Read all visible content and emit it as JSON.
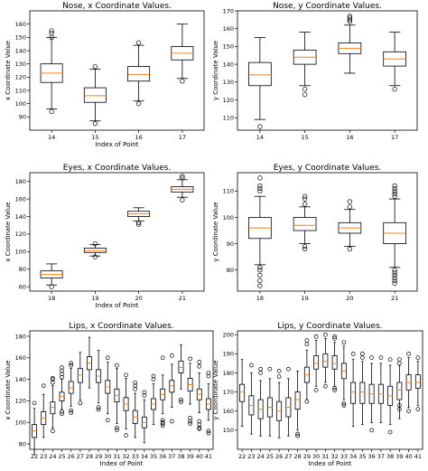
{
  "chart_data": [
    {
      "type": "box",
      "title": "Nose, x Coordinate Values.",
      "xlabel": "Index of Point",
      "ylabel": "x Coordinate Value",
      "ylim": [
        80,
        170
      ],
      "yticks": [
        90,
        100,
        110,
        120,
        130,
        140,
        150,
        160
      ],
      "categories": [
        "14",
        "15",
        "16",
        "17"
      ],
      "boxes": [
        {
          "whislo": 96,
          "q1": 116,
          "med": 123,
          "q3": 130,
          "whishi": 150,
          "fliers": [
            94,
            150,
            153,
            155
          ]
        },
        {
          "whislo": 87,
          "q1": 101,
          "med": 106,
          "q3": 112,
          "whishi": 126,
          "fliers": [
            85,
            128
          ]
        },
        {
          "whislo": 102,
          "q1": 117,
          "med": 122,
          "q3": 128,
          "whishi": 144,
          "fliers": [
            100,
            146
          ]
        },
        {
          "whislo": 119,
          "q1": 133,
          "med": 138,
          "q3": 143,
          "whishi": 160,
          "fliers": [
            117
          ]
        }
      ]
    },
    {
      "type": "box",
      "title": "Nose, y Coordinate Values.",
      "xlabel": "",
      "ylabel": "y Coordinate Value",
      "ylim": [
        103,
        170
      ],
      "yticks": [
        110,
        120,
        130,
        140,
        150,
        160,
        170
      ],
      "categories": [
        "14",
        "15",
        "16",
        "17"
      ],
      "boxes": [
        {
          "whislo": 109,
          "q1": 128,
          "med": 134,
          "q3": 141,
          "whishi": 155,
          "fliers": [
            105
          ]
        },
        {
          "whislo": 128,
          "q1": 140,
          "med": 144,
          "q3": 148,
          "whishi": 158,
          "fliers": [
            126,
            123
          ]
        },
        {
          "whislo": 135,
          "q1": 146,
          "med": 149,
          "q3": 152,
          "whishi": 162,
          "fliers": [
            164,
            165,
            166,
            167
          ]
        },
        {
          "whislo": 128,
          "q1": 139,
          "med": 143,
          "q3": 147,
          "whishi": 158,
          "fliers": [
            126
          ]
        }
      ]
    },
    {
      "type": "box",
      "title": "Eyes, x Coordinate Values.",
      "xlabel": "Index of Point",
      "ylabel": "x Coordinate Value",
      "ylim": [
        55,
        190
      ],
      "yticks": [
        60,
        80,
        100,
        120,
        140,
        160,
        180
      ],
      "categories": [
        "18",
        "19",
        "20",
        "21"
      ],
      "boxes": [
        {
          "whislo": 62,
          "q1": 70,
          "med": 74,
          "q3": 78,
          "whishi": 86,
          "fliers": [
            60
          ]
        },
        {
          "whislo": 95,
          "q1": 99,
          "med": 101,
          "q3": 104,
          "whishi": 108,
          "fliers": [
            94,
            109
          ]
        },
        {
          "whislo": 135,
          "q1": 140,
          "med": 143,
          "q3": 146,
          "whishi": 150,
          "fliers": [
            131,
            133
          ]
        },
        {
          "whislo": 162,
          "q1": 168,
          "med": 171,
          "q3": 174,
          "whishi": 182,
          "fliers": [
            159,
            184,
            186
          ]
        }
      ]
    },
    {
      "type": "box",
      "title": "Eyes, y Coordinate Values.",
      "xlabel": "",
      "ylabel": "y Coordinate Value",
      "ylim": [
        72,
        117
      ],
      "yticks": [
        80,
        90,
        100,
        110
      ],
      "categories": [
        "18",
        "19",
        "20",
        "21"
      ],
      "boxes": [
        {
          "whislo": 82,
          "q1": 92,
          "med": 96,
          "q3": 100,
          "whishi": 108,
          "fliers": [
            74,
            76,
            78,
            80,
            81,
            110,
            111,
            112,
            115
          ]
        },
        {
          "whislo": 90,
          "q1": 95,
          "med": 97,
          "q3": 100,
          "whishi": 104,
          "fliers": [
            88,
            89,
            105,
            107,
            108
          ]
        },
        {
          "whislo": 89,
          "q1": 94,
          "med": 96,
          "q3": 98,
          "whishi": 103,
          "fliers": [
            88,
            104,
            106
          ]
        },
        {
          "whislo": 81,
          "q1": 90,
          "med": 94,
          "q3": 98,
          "whishi": 107,
          "fliers": [
            75,
            76,
            77,
            78,
            79,
            80,
            108,
            109,
            110,
            111,
            112
          ]
        }
      ]
    },
    {
      "type": "box",
      "title": "Lips, x Coordinate Values.",
      "xlabel": "Index of Point",
      "ylabel": "x Coordinate Value",
      "ylim": [
        75,
        185
      ],
      "yticks": [
        80,
        100,
        120,
        140,
        160,
        180
      ],
      "categories": [
        "22",
        "23",
        "24",
        "25",
        "26",
        "27",
        "28",
        "29",
        "30",
        "31",
        "32",
        "33",
        "34",
        "35",
        "36",
        "37",
        "38",
        "39",
        "40",
        "41"
      ],
      "boxes": [
        {
          "whislo": 70,
          "q1": 86,
          "med": 92,
          "q3": 98,
          "whishi": 113,
          "fliers": [
            118
          ]
        },
        {
          "whislo": 86,
          "q1": 98,
          "med": 104,
          "q3": 110,
          "whishi": 126,
          "fliers": [
            134
          ]
        },
        {
          "whislo": 95,
          "q1": 108,
          "med": 114,
          "q3": 119,
          "whishi": 134,
          "fliers": [
            92,
            137,
            140,
            141
          ]
        },
        {
          "whislo": 112,
          "q1": 120,
          "med": 124,
          "q3": 128,
          "whishi": 140,
          "fliers": [
            108,
            110,
            142,
            145,
            148,
            151
          ]
        },
        {
          "whislo": 115,
          "q1": 127,
          "med": 132,
          "q3": 138,
          "whishi": 150,
          "fliers": [
            109,
            111,
            153,
            155
          ]
        },
        {
          "whislo": 121,
          "q1": 137,
          "med": 144,
          "q3": 150,
          "whishi": 165,
          "fliers": [
            118
          ]
        },
        {
          "whislo": 132,
          "q1": 149,
          "med": 155,
          "q3": 161,
          "whishi": 179,
          "fliers": []
        },
        {
          "whislo": 118,
          "q1": 137,
          "med": 143,
          "q3": 149,
          "whishi": 167,
          "fliers": [
            112,
            114
          ]
        },
        {
          "whislo": 108,
          "q1": 127,
          "med": 133,
          "q3": 139,
          "whishi": 156,
          "fliers": [
            102,
            160
          ]
        },
        {
          "whislo": 99,
          "q1": 119,
          "med": 125,
          "q3": 131,
          "whishi": 150,
          "fliers": [
            93,
            95,
            153
          ]
        },
        {
          "whislo": 94,
          "q1": 111,
          "med": 117,
          "q3": 123,
          "whishi": 141,
          "fliers": [
            88,
            144
          ]
        },
        {
          "whislo": 86,
          "q1": 99,
          "med": 105,
          "q3": 111,
          "whishi": 127,
          "fliers": [
            131,
            134,
            137
          ]
        },
        {
          "whislo": 81,
          "q1": 95,
          "med": 100,
          "q3": 105,
          "whishi": 121,
          "fliers": [
            125,
            128
          ]
        },
        {
          "whislo": 98,
          "q1": 112,
          "med": 117,
          "q3": 122,
          "whishi": 136,
          "fliers": [
            140,
            143
          ]
        },
        {
          "whislo": 108,
          "q1": 121,
          "med": 126,
          "q3": 131,
          "whishi": 144,
          "fliers": [
            97,
            99,
            100,
            102,
            160
          ]
        },
        {
          "whislo": 114,
          "q1": 128,
          "med": 134,
          "q3": 139,
          "whishi": 154,
          "fliers": [
            101,
            162
          ]
        },
        {
          "whislo": 131,
          "q1": 146,
          "med": 151,
          "q3": 157,
          "whishi": 172,
          "fliers": [
            119,
            121
          ]
        },
        {
          "whislo": 117,
          "q1": 129,
          "med": 135,
          "q3": 141,
          "whishi": 155,
          "fliers": [
            99,
            101,
            104,
            159
          ]
        },
        {
          "whislo": 109,
          "q1": 121,
          "med": 126,
          "q3": 131,
          "whishi": 146,
          "fliers": [
            94,
            95,
            98,
            101,
            152,
            156
          ]
        },
        {
          "whislo": 102,
          "q1": 112,
          "med": 117,
          "q3": 122,
          "whishi": 136,
          "fliers": [
            90,
            92,
            143,
            146
          ]
        }
      ]
    },
    {
      "type": "box",
      "title": "Lips, y Coordinate Values.",
      "xlabel": "Index of Point",
      "ylabel": "y Coordinate Value",
      "ylim": [
        140,
        202
      ],
      "yticks": [
        150,
        160,
        170,
        180,
        190,
        200
      ],
      "categories": [
        "22",
        "23",
        "24",
        "25",
        "26",
        "27",
        "28",
        "29",
        "30",
        "31",
        "32",
        "33",
        "34",
        "35",
        "36",
        "37",
        "38",
        "39",
        "40",
        "41"
      ],
      "boxes": [
        {
          "whislo": 152,
          "q1": 165,
          "med": 170,
          "q3": 174,
          "whishi": 187,
          "fliers": []
        },
        {
          "whislo": 148,
          "q1": 158,
          "med": 163,
          "q3": 168,
          "whishi": 180,
          "fliers": [
            184
          ]
        },
        {
          "whislo": 147,
          "q1": 156,
          "med": 161,
          "q3": 166,
          "whishi": 176,
          "fliers": [
            180,
            182
          ]
        },
        {
          "whislo": 147,
          "q1": 157,
          "med": 162,
          "q3": 167,
          "whishi": 177,
          "fliers": [
            182
          ]
        },
        {
          "whislo": 146,
          "q1": 155,
          "med": 160,
          "q3": 165,
          "whishi": 175,
          "fliers": [
            178,
            181
          ]
        },
        {
          "whislo": 147,
          "q1": 157,
          "med": 162,
          "q3": 167,
          "whishi": 177,
          "fliers": [
            182
          ]
        },
        {
          "whislo": 150,
          "q1": 161,
          "med": 166,
          "q3": 170,
          "whishi": 181,
          "fliers": [
            147,
            148
          ]
        },
        {
          "whislo": 166,
          "q1": 175,
          "med": 179,
          "q3": 183,
          "whishi": 192,
          "fliers": [
            165,
            195,
            197
          ]
        },
        {
          "whislo": 173,
          "q1": 182,
          "med": 185,
          "q3": 189,
          "whishi": 197,
          "fliers": [
            171,
            199
          ]
        },
        {
          "whislo": 175,
          "q1": 183,
          "med": 186,
          "q3": 190,
          "whishi": 198,
          "fliers": [
            173,
            200
          ]
        },
        {
          "whislo": 173,
          "q1": 182,
          "med": 185,
          "q3": 189,
          "whishi": 196,
          "fliers": [
            171,
            172,
            198,
            199
          ]
        },
        {
          "whislo": 166,
          "q1": 177,
          "med": 181,
          "q3": 185,
          "whishi": 194,
          "fliers": [
            163,
            164,
            196
          ]
        },
        {
          "whislo": 152,
          "q1": 164,
          "med": 170,
          "q3": 175,
          "whishi": 187,
          "fliers": [
            190
          ]
        },
        {
          "whislo": 153,
          "q1": 164,
          "med": 170,
          "q3": 175,
          "whishi": 186,
          "fliers": [
            188,
            190
          ]
        },
        {
          "whislo": 154,
          "q1": 164,
          "med": 169,
          "q3": 174,
          "whishi": 185,
          "fliers": [
            150,
            188
          ]
        },
        {
          "whislo": 154,
          "q1": 164,
          "med": 169,
          "q3": 174,
          "whishi": 185,
          "fliers": [
            188
          ]
        },
        {
          "whislo": 153,
          "q1": 163,
          "med": 168,
          "q3": 173,
          "whishi": 184,
          "fliers": [
            149,
            187
          ]
        },
        {
          "whislo": 156,
          "q1": 166,
          "med": 171,
          "q3": 175,
          "whishi": 184,
          "fliers": [
            161,
            163,
            185,
            187
          ]
        },
        {
          "whislo": 162,
          "q1": 171,
          "med": 175,
          "q3": 179,
          "whishi": 188,
          "fliers": [
            160,
            190
          ]
        },
        {
          "whislo": 163,
          "q1": 172,
          "med": 175,
          "q3": 179,
          "whishi": 186,
          "fliers": [
            161,
            188
          ]
        }
      ]
    }
  ],
  "colors": {
    "median": "#ff7f0e",
    "box": "#000000",
    "background": "#ffffff"
  }
}
